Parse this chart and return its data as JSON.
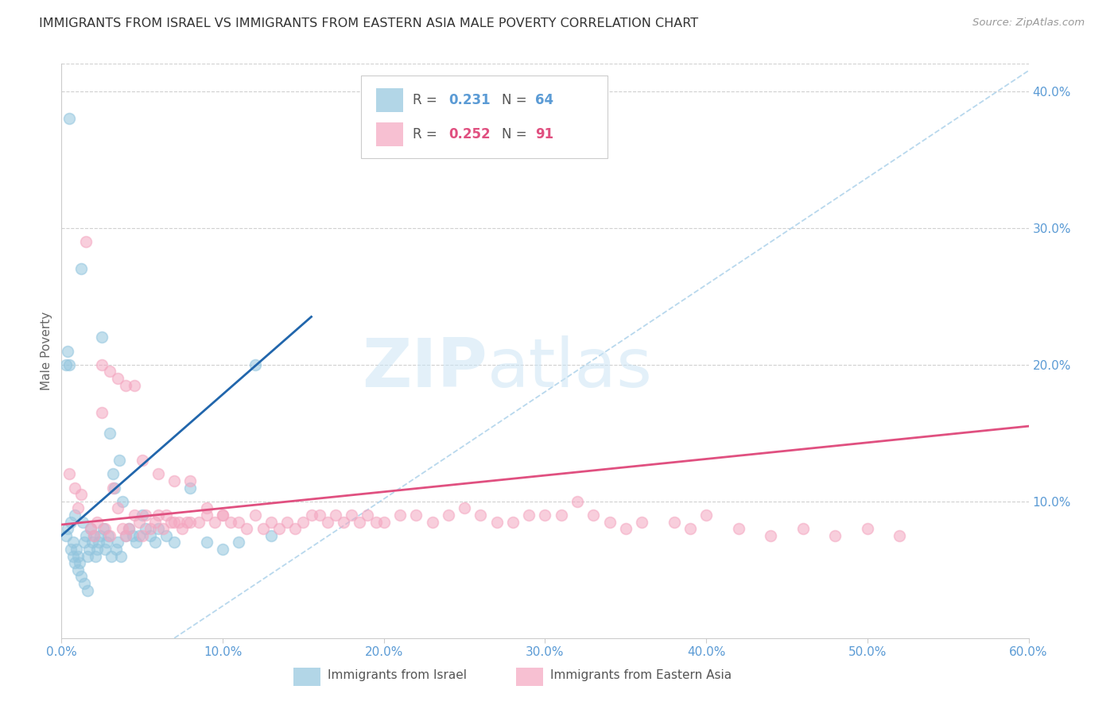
{
  "title": "IMMIGRANTS FROM ISRAEL VS IMMIGRANTS FROM EASTERN ASIA MALE POVERTY CORRELATION CHART",
  "source": "Source: ZipAtlas.com",
  "ylabel": "Male Poverty",
  "legend_label_1": "Immigrants from Israel",
  "legend_label_2": "Immigrants from Eastern Asia",
  "r1": 0.231,
  "n1": 64,
  "r2": 0.252,
  "n2": 91,
  "color_israel": "#92c5de",
  "color_asia": "#f4a6c0",
  "trendline_color_israel": "#2166ac",
  "trendline_color_asia": "#e05080",
  "dashed_line_color": "#b8d8ed",
  "xlim": [
    0.0,
    0.6
  ],
  "ylim": [
    0.0,
    0.42
  ],
  "xticks": [
    0.0,
    0.1,
    0.2,
    0.3,
    0.4,
    0.5,
    0.6
  ],
  "yticks_right": [
    0.1,
    0.2,
    0.3,
    0.4
  ],
  "background_color": "#ffffff",
  "watermark_zip": "ZIP",
  "watermark_atlas": "atlas",
  "israel_x": [
    0.003,
    0.004,
    0.005,
    0.006,
    0.007,
    0.008,
    0.009,
    0.01,
    0.011,
    0.012,
    0.013,
    0.014,
    0.015,
    0.016,
    0.017,
    0.018,
    0.019,
    0.02,
    0.021,
    0.022,
    0.023,
    0.024,
    0.025,
    0.026,
    0.027,
    0.028,
    0.029,
    0.03,
    0.031,
    0.032,
    0.033,
    0.034,
    0.035,
    0.036,
    0.037,
    0.038,
    0.04,
    0.042,
    0.044,
    0.046,
    0.048,
    0.05,
    0.052,
    0.055,
    0.058,
    0.06,
    0.065,
    0.07,
    0.08,
    0.09,
    0.1,
    0.11,
    0.12,
    0.13,
    0.003,
    0.004,
    0.005,
    0.006,
    0.007,
    0.008,
    0.01,
    0.012,
    0.014,
    0.016
  ],
  "israel_y": [
    0.075,
    0.08,
    0.38,
    0.085,
    0.07,
    0.09,
    0.065,
    0.06,
    0.055,
    0.27,
    0.085,
    0.07,
    0.075,
    0.06,
    0.065,
    0.08,
    0.07,
    0.075,
    0.06,
    0.065,
    0.07,
    0.075,
    0.22,
    0.08,
    0.065,
    0.07,
    0.075,
    0.15,
    0.06,
    0.12,
    0.11,
    0.065,
    0.07,
    0.13,
    0.06,
    0.1,
    0.075,
    0.08,
    0.075,
    0.07,
    0.075,
    0.09,
    0.08,
    0.075,
    0.07,
    0.08,
    0.075,
    0.07,
    0.11,
    0.07,
    0.065,
    0.07,
    0.2,
    0.075,
    0.2,
    0.21,
    0.2,
    0.065,
    0.06,
    0.055,
    0.05,
    0.045,
    0.04,
    0.035
  ],
  "asia_x": [
    0.005,
    0.008,
    0.01,
    0.012,
    0.015,
    0.018,
    0.02,
    0.022,
    0.025,
    0.027,
    0.03,
    0.032,
    0.035,
    0.038,
    0.04,
    0.042,
    0.045,
    0.048,
    0.05,
    0.052,
    0.055,
    0.058,
    0.06,
    0.063,
    0.065,
    0.068,
    0.07,
    0.073,
    0.075,
    0.078,
    0.08,
    0.085,
    0.09,
    0.095,
    0.1,
    0.105,
    0.11,
    0.115,
    0.12,
    0.125,
    0.13,
    0.135,
    0.14,
    0.145,
    0.15,
    0.155,
    0.16,
    0.165,
    0.17,
    0.175,
    0.18,
    0.185,
    0.19,
    0.195,
    0.2,
    0.21,
    0.22,
    0.23,
    0.24,
    0.25,
    0.26,
    0.27,
    0.28,
    0.29,
    0.3,
    0.31,
    0.32,
    0.33,
    0.34,
    0.35,
    0.36,
    0.38,
    0.39,
    0.4,
    0.42,
    0.44,
    0.46,
    0.48,
    0.5,
    0.52,
    0.025,
    0.03,
    0.035,
    0.04,
    0.045,
    0.05,
    0.06,
    0.07,
    0.08,
    0.09,
    0.1
  ],
  "asia_y": [
    0.12,
    0.11,
    0.095,
    0.105,
    0.29,
    0.08,
    0.075,
    0.085,
    0.165,
    0.08,
    0.075,
    0.11,
    0.095,
    0.08,
    0.075,
    0.08,
    0.09,
    0.085,
    0.075,
    0.09,
    0.08,
    0.085,
    0.09,
    0.08,
    0.09,
    0.085,
    0.085,
    0.085,
    0.08,
    0.085,
    0.085,
    0.085,
    0.09,
    0.085,
    0.09,
    0.085,
    0.085,
    0.08,
    0.09,
    0.08,
    0.085,
    0.08,
    0.085,
    0.08,
    0.085,
    0.09,
    0.09,
    0.085,
    0.09,
    0.085,
    0.09,
    0.085,
    0.09,
    0.085,
    0.085,
    0.09,
    0.09,
    0.085,
    0.09,
    0.095,
    0.09,
    0.085,
    0.085,
    0.09,
    0.09,
    0.09,
    0.1,
    0.09,
    0.085,
    0.08,
    0.085,
    0.085,
    0.08,
    0.09,
    0.08,
    0.075,
    0.08,
    0.075,
    0.08,
    0.075,
    0.2,
    0.195,
    0.19,
    0.185,
    0.185,
    0.13,
    0.12,
    0.115,
    0.115,
    0.095,
    0.09
  ]
}
